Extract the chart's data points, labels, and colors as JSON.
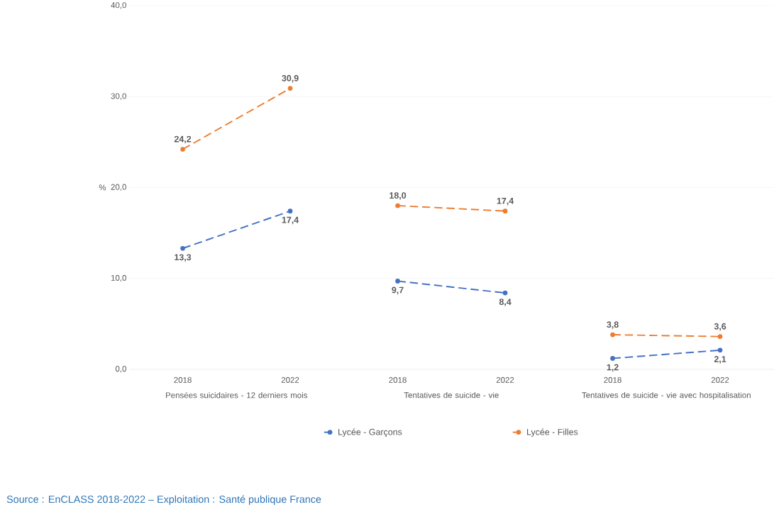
{
  "chart_data": {
    "type": "line",
    "ylabel": "%",
    "categories": [
      "2018",
      "2022",
      "2018",
      "2022",
      "2018",
      "2022"
    ],
    "ylim": [
      0,
      40
    ],
    "yticks": [
      {
        "value": 0,
        "label": "0,0"
      },
      {
        "value": 10,
        "label": "10,0"
      },
      {
        "value": 20,
        "label": "20,0"
      },
      {
        "value": 30,
        "label": "30,0"
      },
      {
        "value": 40,
        "label": "40,0"
      }
    ],
    "grid": "y",
    "legend": "bottom",
    "marker": "circle",
    "line_style": "dashed",
    "series": [
      {
        "name": "Lycée - Garçons",
        "color": "#4472c4",
        "values": [
          13.3,
          17.4,
          null,
          null,
          null,
          null
        ],
        "value_labels": [
          "13,3",
          "17,4",
          null,
          null,
          null,
          null
        ]
      },
      {
        "name": "Lycée - Filles",
        "color": "#ed7d31",
        "values": [
          24.2,
          30.9,
          null,
          null,
          null,
          null
        ],
        "value_labels": [
          "24,2",
          "30,9",
          null,
          null,
          null,
          null
        ]
      },
      {
        "color": "#4472c4",
        "values": [
          null,
          null,
          9.7,
          8.4,
          null,
          null
        ],
        "value_labels": [
          null,
          null,
          "9,7",
          "8,4",
          null,
          null
        ]
      },
      {
        "color": "#ed7d31",
        "values": [
          null,
          null,
          18.0,
          17.4,
          null,
          null
        ],
        "value_labels": [
          null,
          null,
          "18,0",
          "17,4",
          null,
          null
        ]
      },
      {
        "color": "#4472c4",
        "values": [
          null,
          null,
          null,
          null,
          1.2,
          2.1
        ],
        "value_labels": [
          null,
          null,
          null,
          null,
          "1,2",
          "2,1"
        ]
      },
      {
        "color": "#ed7d31",
        "values": [
          null,
          null,
          null,
          null,
          3.8,
          3.6
        ],
        "value_labels": [
          null,
          null,
          null,
          null,
          "3,8",
          "3,6"
        ]
      }
    ],
    "annotations": [
      "Pensées suicidaires - 12 derniers mois",
      "Tentatives de suicide - vie",
      "Tentatives de suicide - vie avec hospitalisation",
      "Source : EnCLASS 2018-2022 – Exploitation : Santé publique France"
    ]
  }
}
